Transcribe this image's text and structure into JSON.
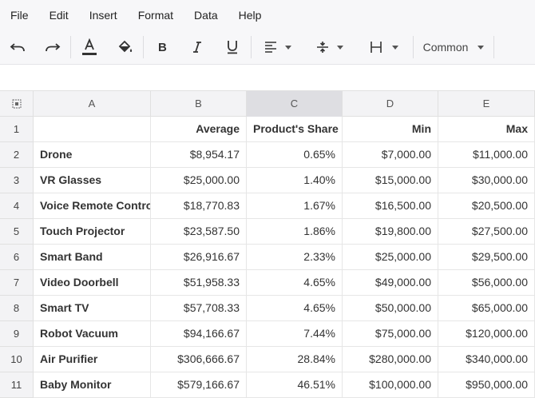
{
  "menu": [
    "File",
    "Edit",
    "Insert",
    "Format",
    "Data",
    "Help"
  ],
  "toolbar": {
    "format_select": "Common"
  },
  "columns": [
    "A",
    "B",
    "C",
    "D",
    "E"
  ],
  "selected_column": "C",
  "rows": [
    {
      "num": "1",
      "a": "",
      "b": "Average",
      "c": "Product's Share",
      "d": "Min",
      "e": "Max"
    },
    {
      "num": "2",
      "a": "Drone",
      "b": "$8,954.17",
      "c": "0.65%",
      "d": "$7,000.00",
      "e": "$11,000.00"
    },
    {
      "num": "3",
      "a": "VR Glasses",
      "b": "$25,000.00",
      "c": "1.40%",
      "d": "$15,000.00",
      "e": "$30,000.00"
    },
    {
      "num": "4",
      "a": "Voice Remote Control",
      "b": "$18,770.83",
      "c": "1.67%",
      "d": "$16,500.00",
      "e": "$20,500.00"
    },
    {
      "num": "5",
      "a": "Touch Projector",
      "b": "$23,587.50",
      "c": "1.86%",
      "d": "$19,800.00",
      "e": "$27,500.00"
    },
    {
      "num": "6",
      "a": "Smart Band",
      "b": "$26,916.67",
      "c": "2.33%",
      "d": "$25,000.00",
      "e": "$29,500.00"
    },
    {
      "num": "7",
      "a": "Video Doorbell",
      "b": "$51,958.33",
      "c": "4.65%",
      "d": "$49,000.00",
      "e": "$56,000.00"
    },
    {
      "num": "8",
      "a": "Smart TV",
      "b": "$57,708.33",
      "c": "4.65%",
      "d": "$50,000.00",
      "e": "$65,000.00"
    },
    {
      "num": "9",
      "a": "Robot Vacuum",
      "b": "$94,166.67",
      "c": "7.44%",
      "d": "$75,000.00",
      "e": "$120,000.00"
    },
    {
      "num": "10",
      "a": "Air Purifier",
      "b": "$306,666.67",
      "c": "28.84%",
      "d": "$280,000.00",
      "e": "$340,000.00"
    },
    {
      "num": "11",
      "a": "Baby Monitor",
      "b": "$579,166.67",
      "c": "46.51%",
      "d": "$100,000.00",
      "e": "$950,000.00"
    }
  ]
}
